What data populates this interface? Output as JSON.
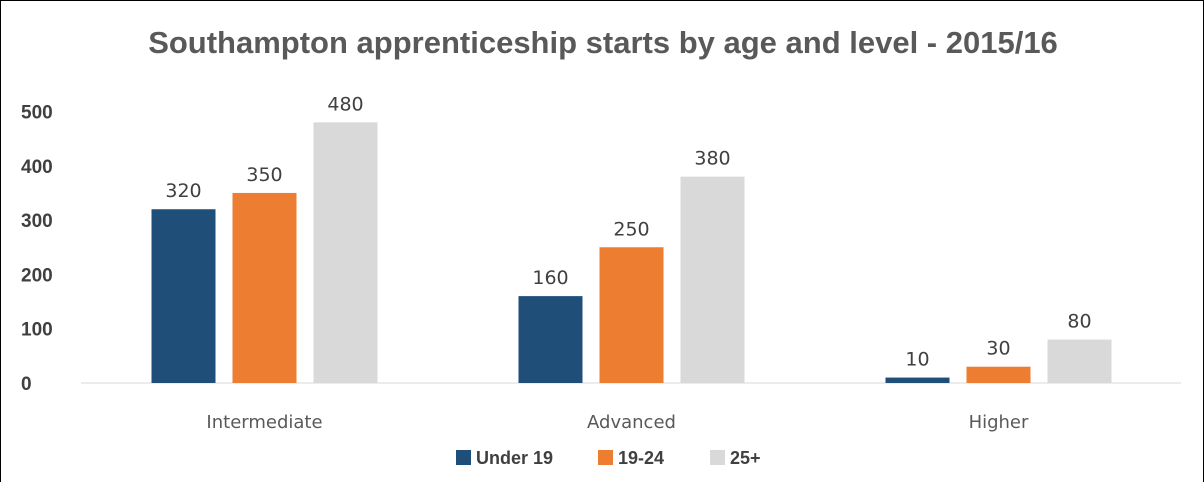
{
  "chart_data": {
    "type": "bar",
    "title": "Southampton apprenticeship starts by age and level - 2015/16",
    "categories": [
      "Intermediate",
      "Advanced",
      "Higher"
    ],
    "series": [
      {
        "name": "Under 19",
        "color": "#1F4E79",
        "values": [
          320,
          160,
          10
        ]
      },
      {
        "name": "19-24",
        "color": "#ED7D31",
        "values": [
          350,
          250,
          30
        ]
      },
      {
        "name": "25+",
        "color": "#D9D9D9",
        "values": [
          480,
          380,
          80
        ]
      }
    ],
    "ylim": [
      0,
      500
    ],
    "yticks": [
      "0",
      "100",
      "200",
      "300",
      "400",
      "500"
    ],
    "grid": false,
    "legend": "bottom"
  }
}
